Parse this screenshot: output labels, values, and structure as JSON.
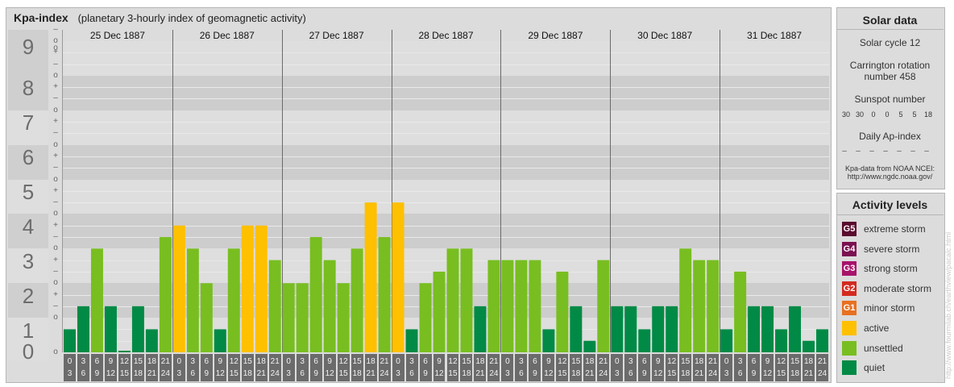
{
  "header": {
    "title": "Kpa-index",
    "subtitle": "(planetary 3-hourly index of geomagnetic activity)"
  },
  "chart_data": {
    "type": "bar",
    "title": "Kpa-index",
    "subtitle": "(planetary 3-hourly index of geomagnetic activity)",
    "ylim": [
      0,
      9
    ],
    "y_ticks": [
      "0",
      "1",
      "2",
      "3",
      "4",
      "5",
      "6",
      "7",
      "8",
      "9"
    ],
    "sub_ticks": [
      "+",
      "–",
      "o"
    ],
    "days": [
      "25 Dec 1887",
      "26 Dec 1887",
      "27 Dec 1887",
      "28 Dec 1887",
      "29 Dec 1887",
      "30 Dec 1887",
      "31 Dec 1887"
    ],
    "interval_start": [
      "0",
      "3",
      "6",
      "9",
      "12",
      "15",
      "18",
      "21"
    ],
    "interval_end": [
      "3",
      "6",
      "9",
      "12",
      "15",
      "18",
      "21",
      "24"
    ],
    "values": [
      [
        0.667,
        1.333,
        3.0,
        1.333,
        0.0,
        1.333,
        0.667,
        3.333
      ],
      [
        3.667,
        3.0,
        2.0,
        0.667,
        3.0,
        3.667,
        3.667,
        2.667
      ],
      [
        2.0,
        2.0,
        3.333,
        2.667,
        2.0,
        3.0,
        4.333,
        3.333
      ],
      [
        4.333,
        0.667,
        2.0,
        2.333,
        3.0,
        3.0,
        1.333,
        2.667
      ],
      [
        2.667,
        2.667,
        2.667,
        0.667,
        2.333,
        1.333,
        0.333,
        2.667
      ],
      [
        1.333,
        1.333,
        0.667,
        1.333,
        1.333,
        3.0,
        2.667,
        2.667
      ],
      [
        0.667,
        2.333,
        1.333,
        1.333,
        0.667,
        1.333,
        0.333,
        0.667
      ]
    ],
    "grid": true
  },
  "sidebar": {
    "solar_data": {
      "heading": "Solar data",
      "solar_cycle": "Solar cycle 12",
      "carrington_line1": "Carrington rotation",
      "carrington_line2": "number 458",
      "sunspot_label": "Sunspot number",
      "sunspot_values": [
        "30",
        "30",
        "0",
        "0",
        "5",
        "5",
        "18"
      ],
      "ap_label": "Daily Ap-index",
      "ap_values": [
        "–",
        "–",
        "–",
        "–",
        "–",
        "–",
        "–"
      ],
      "source_line1": "Kpa-data from NOAA NCEI:",
      "source_line2": "http://www.ngdc.noaa.gov/"
    },
    "activity_levels": {
      "heading": "Activity levels",
      "items": [
        {
          "badge": "G5",
          "label": "extreme storm",
          "color": "#5a0a2e"
        },
        {
          "badge": "G4",
          "label": "severe storm",
          "color": "#7b1050"
        },
        {
          "badge": "G3",
          "label": "strong storm",
          "color": "#a8126a"
        },
        {
          "badge": "G2",
          "label": "moderate storm",
          "color": "#d42a1f"
        },
        {
          "badge": "G1",
          "label": "minor storm",
          "color": "#e87020"
        },
        {
          "badge": "",
          "label": "active",
          "color": "#ffc000"
        },
        {
          "badge": "",
          "label": "unsettled",
          "color": "#78be20"
        },
        {
          "badge": "",
          "label": "quiet",
          "color": "#008a45"
        }
      ]
    }
  },
  "credit": "http://www.fourmilab.ch/earthview/pacalc.html"
}
